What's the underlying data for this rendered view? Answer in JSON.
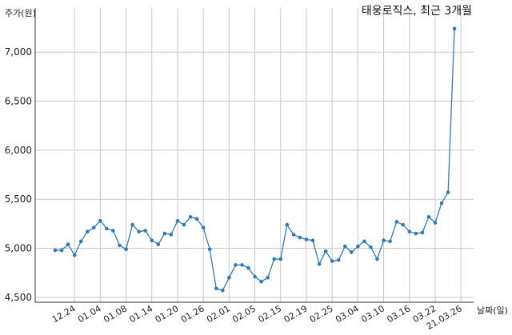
{
  "chart_data": {
    "type": "line",
    "title": "태웅로직스, 최근 3개월",
    "xlabel": "날짜(일)",
    "ylabel": "주가(원)",
    "ylim": [
      4450,
      7450
    ],
    "grid": true,
    "legend": "none",
    "colors": {
      "line": "#2f7bb7",
      "grid": "#c8c8c8",
      "axis": "#333333"
    },
    "yticks": [
      {
        "value": 4500,
        "label": "4,500"
      },
      {
        "value": 5000,
        "label": "5,000"
      },
      {
        "value": 5500,
        "label": "5,500"
      },
      {
        "value": 6000,
        "label": "6,000"
      },
      {
        "value": 6500,
        "label": "6,500"
      },
      {
        "value": 7000,
        "label": "7,000"
      }
    ],
    "xticks": [
      {
        "index": 3,
        "label": "12.24"
      },
      {
        "index": 7,
        "label": "01.04"
      },
      {
        "index": 11,
        "label": "01.08"
      },
      {
        "index": 15,
        "label": "01.14"
      },
      {
        "index": 19,
        "label": "01.20"
      },
      {
        "index": 23,
        "label": "01.26"
      },
      {
        "index": 27,
        "label": "02.01"
      },
      {
        "index": 31,
        "label": "02.05"
      },
      {
        "index": 35,
        "label": "02.15"
      },
      {
        "index": 39,
        "label": "02.19"
      },
      {
        "index": 43,
        "label": "02.25"
      },
      {
        "index": 47,
        "label": "03.04"
      },
      {
        "index": 51,
        "label": "03.10"
      },
      {
        "index": 55,
        "label": "03.16"
      },
      {
        "index": 59,
        "label": "03.22"
      },
      {
        "index": 63,
        "label": "21.03.26"
      }
    ],
    "series": [
      {
        "values": [
          4980,
          4980,
          5040,
          4930,
          5070,
          5170,
          5210,
          5280,
          5200,
          5180,
          5030,
          4990,
          5240,
          5170,
          5180,
          5080,
          5040,
          5150,
          5140,
          5280,
          5240,
          5320,
          5300,
          5210,
          4990,
          4590,
          4570,
          4700,
          4830,
          4830,
          4800,
          4710,
          4660,
          4700,
          4890,
          4890,
          5240,
          5140,
          5110,
          5090,
          5080,
          4840,
          4970,
          4870,
          4880,
          5020,
          4960,
          5020,
          5070,
          5010,
          4890,
          5080,
          5070,
          5270,
          5240,
          5170,
          5150,
          5160,
          5320,
          5260,
          5460,
          5570,
          7240
        ]
      }
    ]
  }
}
